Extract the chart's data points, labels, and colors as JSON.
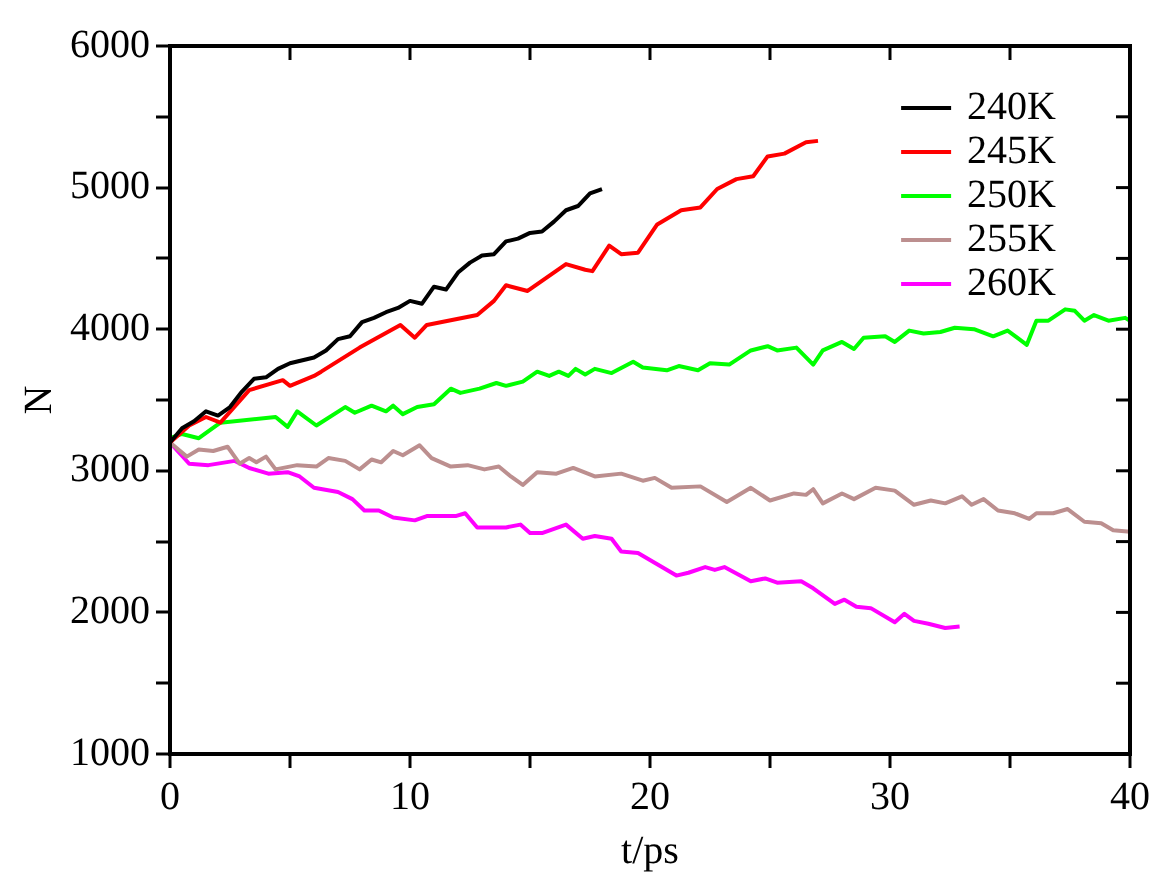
{
  "chart_data": {
    "type": "line",
    "xlabel": "t/ps",
    "ylabel": "N",
    "xlim": [
      0,
      40
    ],
    "xticks": [
      0,
      {
        "value": 5,
        "label": null
      },
      10,
      {
        "value": 15,
        "label": null
      },
      20,
      {
        "value": 25,
        "label": null
      },
      30,
      {
        "value": 35,
        "label": null
      },
      40
    ],
    "ylim": [
      1000,
      6000
    ],
    "yticks": [
      1000,
      {
        "value": 1500,
        "label": null
      },
      2000,
      {
        "value": 2500,
        "label": null
      },
      3000,
      {
        "value": 3500,
        "label": null
      },
      4000,
      {
        "value": 4500,
        "label": null
      },
      5000,
      {
        "value": 5500,
        "label": null
      },
      6000
    ],
    "grid": false,
    "legend": "top right",
    "marker": "none",
    "line_style": "solid",
    "series": [
      {
        "name": "240K",
        "color": "#000000",
        "x": [
          0,
          0.5,
          1,
          1.5,
          2,
          2.5,
          3,
          3.5,
          4,
          4.5,
          5,
          6,
          6.5,
          7,
          7.5,
          8,
          8.5,
          9,
          9.5,
          10,
          10.5,
          11,
          11.5,
          12,
          12.5,
          13,
          13.5,
          14,
          14.5,
          15,
          15.5,
          16,
          16.5,
          17,
          17.5,
          18
        ],
        "values": [
          3200,
          3300,
          3350,
          3420,
          3390,
          3450,
          3560,
          3650,
          3660,
          3720,
          3760,
          3800,
          3850,
          3930,
          3950,
          4050,
          4080,
          4120,
          4150,
          4200,
          4180,
          4300,
          4280,
          4400,
          4470,
          4520,
          4530,
          4620,
          4640,
          4680,
          4690,
          4760,
          4840,
          4870,
          4960,
          4990
        ]
      },
      {
        "name": "245K",
        "color": "#ff0000",
        "x": [
          0,
          0.8,
          1.5,
          2.1,
          3.3,
          4.7,
          5,
          6,
          6.3,
          7.9,
          9.6,
          10.2,
          10.7,
          12.8,
          13.5,
          14,
          14.9,
          16.5,
          17.3,
          17.6,
          18.3,
          18.8,
          19.5,
          20.3,
          21.3,
          22.1,
          22.8,
          23.6,
          24.3,
          24.9,
          25.6,
          26.5,
          27
        ],
        "values": [
          3200,
          3320,
          3380,
          3340,
          3570,
          3640,
          3600,
          3670,
          3700,
          3870,
          4030,
          3940,
          4030,
          4100,
          4200,
          4310,
          4270,
          4460,
          4420,
          4410,
          4590,
          4530,
          4540,
          4740,
          4840,
          4860,
          4990,
          5060,
          5080,
          5220,
          5240,
          5320,
          5330
        ]
      },
      {
        "name": "250K",
        "color": "#00ff00",
        "x": [
          0,
          0.5,
          1.2,
          2.1,
          4.4,
          4.9,
          5.3,
          6.1,
          7.3,
          7.7,
          8.4,
          9,
          9.3,
          9.7,
          10.3,
          11,
          11.7,
          12.1,
          12.9,
          13.6,
          14,
          14.7,
          15.3,
          15.8,
          16.2,
          16.6,
          16.9,
          17.3,
          17.7,
          18.4,
          19.3,
          19.7,
          20.7,
          21.2,
          22,
          22.5,
          23.3,
          24.2,
          24.9,
          25.3,
          26.1,
          26.8,
          27.2,
          28,
          28.5,
          28.9,
          29.8,
          30.2,
          30.8,
          31.4,
          32.1,
          32.7,
          33.5,
          34.3,
          34.9,
          35.7,
          36.1,
          36.6,
          37.3,
          37.7,
          38.1,
          38.5,
          39.1,
          39.8,
          40
        ],
        "values": [
          3230,
          3260,
          3230,
          3340,
          3380,
          3310,
          3420,
          3320,
          3450,
          3410,
          3460,
          3420,
          3460,
          3400,
          3450,
          3470,
          3580,
          3550,
          3580,
          3620,
          3600,
          3630,
          3700,
          3670,
          3700,
          3670,
          3720,
          3680,
          3720,
          3690,
          3770,
          3730,
          3710,
          3740,
          3710,
          3760,
          3750,
          3850,
          3880,
          3850,
          3870,
          3750,
          3850,
          3910,
          3860,
          3940,
          3950,
          3910,
          3990,
          3970,
          3980,
          4010,
          4000,
          3950,
          3990,
          3890,
          4060,
          4060,
          4140,
          4130,
          4060,
          4100,
          4060,
          4080,
          4060
        ]
      },
      {
        "name": "255K",
        "color": "#bc8f8f",
        "x": [
          0,
          0.7,
          1.2,
          1.8,
          2.4,
          2.9,
          3.3,
          3.6,
          4,
          4.4,
          5.3,
          6.1,
          6.6,
          7.3,
          7.9,
          8.4,
          8.8,
          9.3,
          9.7,
          10.4,
          10.9,
          11.7,
          12.4,
          13.1,
          13.7,
          14.2,
          14.7,
          15.3,
          16.1,
          16.8,
          17.7,
          18.8,
          19.7,
          20.2,
          20.9,
          22.1,
          23.2,
          24.2,
          25,
          26,
          26.5,
          26.8,
          27.2,
          28,
          28.5,
          29.4,
          30.2,
          31,
          31.7,
          32.3,
          33,
          33.4,
          33.9,
          34.5,
          35.2,
          35.8,
          36.1,
          36.8,
          37.4,
          38.1,
          38.8,
          39.3,
          40
        ],
        "values": [
          3200,
          3100,
          3150,
          3140,
          3170,
          3050,
          3090,
          3060,
          3100,
          3010,
          3040,
          3030,
          3090,
          3070,
          3010,
          3080,
          3060,
          3140,
          3110,
          3180,
          3090,
          3030,
          3040,
          3010,
          3030,
          2960,
          2900,
          2990,
          2980,
          3020,
          2960,
          2980,
          2930,
          2950,
          2880,
          2890,
          2780,
          2880,
          2790,
          2840,
          2830,
          2870,
          2770,
          2840,
          2800,
          2880,
          2860,
          2760,
          2790,
          2770,
          2820,
          2760,
          2800,
          2720,
          2700,
          2660,
          2700,
          2700,
          2730,
          2640,
          2630,
          2580,
          2570
        ]
      },
      {
        "name": "260K",
        "color": "#ff00ff",
        "x": [
          0,
          0.8,
          1.6,
          2.7,
          3.3,
          4.1,
          4.9,
          5.4,
          6,
          7,
          7.6,
          8.1,
          8.7,
          9.3,
          10.2,
          10.7,
          11.9,
          12.3,
          12.8,
          14,
          14.6,
          15,
          15.5,
          16.5,
          17.2,
          17.7,
          18.4,
          18.8,
          19.5,
          20.3,
          21.1,
          21.6,
          22.3,
          22.7,
          23.1,
          24.2,
          24.8,
          25.3,
          26.3,
          26.8,
          27.7,
          28.1,
          28.6,
          29.2,
          30.2,
          30.6,
          31,
          31.6,
          32.3,
          32.9
        ],
        "values": [
          3200,
          3050,
          3040,
          3070,
          3020,
          2980,
          2990,
          2960,
          2880,
          2850,
          2800,
          2720,
          2720,
          2670,
          2650,
          2680,
          2680,
          2700,
          2600,
          2600,
          2620,
          2560,
          2560,
          2620,
          2520,
          2540,
          2520,
          2430,
          2420,
          2340,
          2260,
          2280,
          2320,
          2300,
          2320,
          2220,
          2240,
          2210,
          2220,
          2170,
          2060,
          2090,
          2040,
          2030,
          1930,
          1990,
          1940,
          1920,
          1890,
          1900
        ]
      }
    ]
  }
}
